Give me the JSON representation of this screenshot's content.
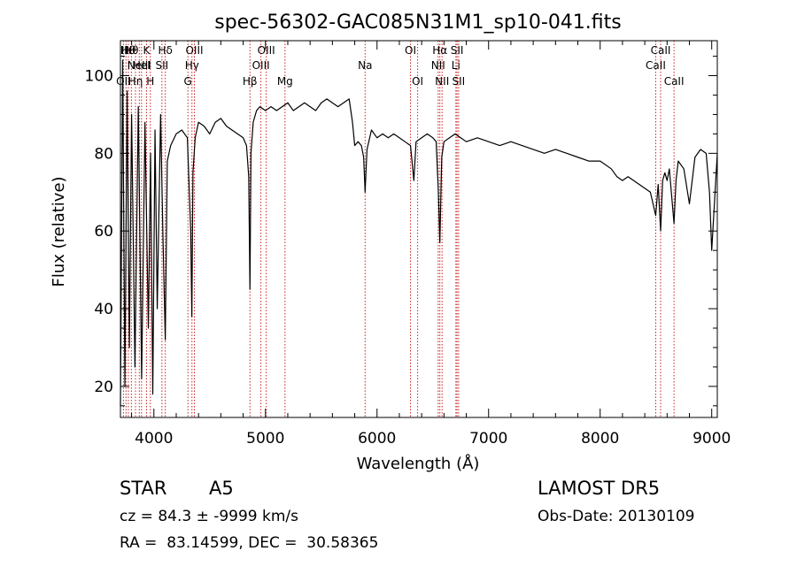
{
  "chart_data": {
    "type": "line",
    "title": "spec-56302-GAC085N31M1_sp10-041.fits",
    "xlabel": "Wavelength (Å)",
    "ylabel": "Flux (relative)",
    "xlim": [
      3700,
      9050
    ],
    "ylim": [
      12,
      109
    ],
    "xticks": [
      4000,
      5000,
      6000,
      7000,
      8000,
      9000
    ],
    "xtick_labels": [
      "4000",
      "5000",
      "6000",
      "7000",
      "8000",
      "9000"
    ],
    "yticks": [
      20,
      40,
      60,
      80,
      100
    ],
    "ytick_labels": [
      "20",
      "40",
      "60",
      "80",
      "100"
    ],
    "grid": false,
    "series": [
      {
        "x": [
          3700,
          3720,
          3740,
          3760,
          3780,
          3800,
          3830,
          3860,
          3890,
          3920,
          3950,
          3970,
          3990,
          4010,
          4030,
          4060,
          4080,
          4102,
          4120,
          4150,
          4200,
          4250,
          4300,
          4330,
          4340,
          4350,
          4370,
          4400,
          4450,
          4500,
          4550,
          4600,
          4650,
          4700,
          4750,
          4800,
          4830,
          4850,
          4861,
          4870,
          4890,
          4920,
          4950,
          5000,
          5050,
          5100,
          5150,
          5200,
          5250,
          5300,
          5350,
          5400,
          5450,
          5500,
          5550,
          5600,
          5650,
          5700,
          5750,
          5780,
          5800,
          5830,
          5860,
          5880,
          5893,
          5910,
          5950,
          6000,
          6050,
          6100,
          6150,
          6200,
          6250,
          6300,
          6330,
          6350,
          6400,
          6450,
          6500,
          6530,
          6550,
          6563,
          6580,
          6600,
          6650,
          6700,
          6750,
          6800,
          6900,
          7000,
          7100,
          7200,
          7300,
          7400,
          7500,
          7600,
          7700,
          7800,
          7900,
          8000,
          8100,
          8150,
          8200,
          8250,
          8300,
          8350,
          8400,
          8450,
          8498,
          8520,
          8542,
          8560,
          8580,
          8600,
          8620,
          8662,
          8680,
          8700,
          8750,
          8800,
          8850,
          8900,
          8950,
          8980,
          9000,
          9050
        ],
        "y": [
          15,
          104,
          20,
          96,
          30,
          90,
          25,
          92,
          22,
          88,
          35,
          80,
          18,
          86,
          40,
          90,
          60,
          32,
          78,
          82,
          85,
          86,
          84,
          60,
          38,
          75,
          84,
          88,
          87,
          85,
          88,
          89,
          87,
          86,
          85,
          84,
          82,
          74,
          45,
          80,
          88,
          91,
          92,
          91,
          92,
          91,
          92,
          93,
          91,
          92,
          93,
          92,
          91,
          93,
          94,
          93,
          92,
          93,
          94,
          88,
          82,
          83,
          82,
          79,
          70,
          81,
          86,
          84,
          85,
          84,
          85,
          84,
          83,
          82,
          73,
          83,
          84,
          85,
          84,
          83,
          70,
          57,
          79,
          83,
          84,
          85,
          84,
          83,
          84,
          83,
          82,
          83,
          82,
          81,
          80,
          81,
          80,
          79,
          78,
          78,
          76,
          74,
          73,
          74,
          73,
          72,
          71,
          70,
          64,
          72,
          60,
          73,
          75,
          73,
          76,
          62,
          73,
          78,
          76,
          67,
          79,
          81,
          80,
          70,
          55,
          80
        ]
      }
    ],
    "lines": [
      {
        "x": 3727,
        "labels": [
          "OII"
        ],
        "rows": [
          3
        ]
      },
      {
        "x": 3750,
        "labels": [
          "Hι"
        ],
        "rows": [
          1
        ]
      },
      {
        "x": 3771,
        "labels": [
          "Hθ"
        ],
        "rows": [
          1
        ]
      },
      {
        "x": 3798,
        "labels": [
          "Hθ"
        ],
        "rows": [
          1
        ]
      },
      {
        "x": 3835,
        "labels": [
          "Hη"
        ],
        "rows": [
          3
        ]
      },
      {
        "x": 3869,
        "labels": [
          "NeIII"
        ],
        "rows": [
          2
        ]
      },
      {
        "x": 3889,
        "labels": [
          "HeI"
        ],
        "rows": [
          2
        ]
      },
      {
        "x": 3934,
        "labels": [
          "K"
        ],
        "rows": [
          1
        ]
      },
      {
        "x": 3968,
        "labels": [
          "H"
        ],
        "rows": [
          3
        ]
      },
      {
        "x": 4072,
        "labels": [
          "SII"
        ],
        "rows": [
          2
        ]
      },
      {
        "x": 4102,
        "labels": [
          "Hδ"
        ],
        "rows": [
          1
        ]
      },
      {
        "x": 4305,
        "labels": [
          "G"
        ],
        "rows": [
          3
        ]
      },
      {
        "x": 4341,
        "labels": [
          "Hγ"
        ],
        "rows": [
          2
        ]
      },
      {
        "x": 4363,
        "labels": [
          "OIII"
        ],
        "rows": [
          1
        ]
      },
      {
        "x": 4861,
        "labels": [
          "Hβ"
        ],
        "rows": [
          3
        ]
      },
      {
        "x": 4959,
        "labels": [
          "OIII"
        ],
        "rows": [
          2
        ]
      },
      {
        "x": 5007,
        "labels": [
          "OIII"
        ],
        "rows": [
          1
        ]
      },
      {
        "x": 5175,
        "labels": [
          "Mg"
        ],
        "rows": [
          3
        ]
      },
      {
        "x": 5893,
        "labels": [
          "Na"
        ],
        "rows": [
          2
        ]
      },
      {
        "x": 6300,
        "labels": [
          "OI"
        ],
        "rows": [
          1
        ]
      },
      {
        "x": 6364,
        "labels": [
          "OI"
        ],
        "rows": [
          3
        ]
      },
      {
        "x": 6548,
        "labels": [
          "NII"
        ],
        "rows": [
          2
        ]
      },
      {
        "x": 6563,
        "labels": [
          "Hα"
        ],
        "rows": [
          1
        ]
      },
      {
        "x": 6583,
        "labels": [
          "NII"
        ],
        "rows": [
          3
        ]
      },
      {
        "x": 6707,
        "labels": [
          "Li"
        ],
        "rows": [
          2
        ]
      },
      {
        "x": 6717,
        "labels": [
          "SII"
        ],
        "rows": [
          1
        ]
      },
      {
        "x": 6731,
        "labels": [
          "SII"
        ],
        "rows": [
          3
        ]
      },
      {
        "x": 8498,
        "labels": [
          "CaII"
        ],
        "rows": [
          2
        ]
      },
      {
        "x": 8542,
        "labels": [
          "CaII"
        ],
        "rows": [
          1
        ]
      },
      {
        "x": 8662,
        "labels": [
          "CaII"
        ],
        "rows": [
          3
        ]
      }
    ]
  },
  "info": {
    "class": "STAR",
    "subclass": "A5",
    "survey": "LAMOST DR5",
    "cz_text": "cz = 84.3 ± -9999 km/s",
    "obs_date": "Obs-Date: 20130109",
    "radec": "RA =  83.14599, DEC =  30.58365"
  }
}
